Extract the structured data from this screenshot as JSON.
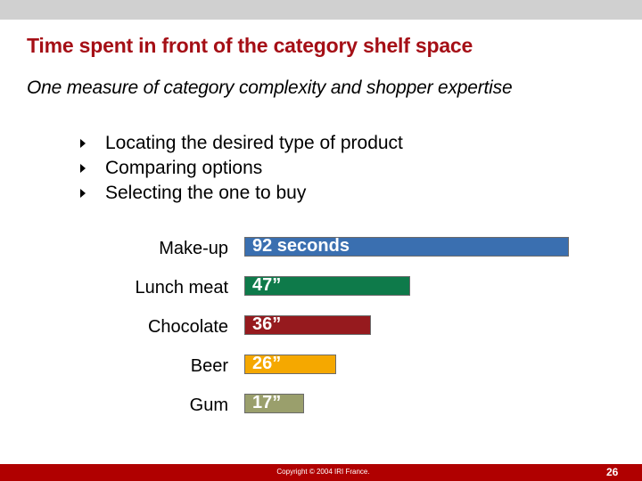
{
  "slide": {
    "title": "Time spent in front of the category shelf space",
    "subtitle": "One measure of category complexity and shopper expertise",
    "bullets": [
      "Locating the desired type of product",
      "Comparing options",
      "Selecting the one to buy"
    ],
    "footer": {
      "copyright": "Copyright © 2004 IRI France.",
      "page_number": "26"
    },
    "colors": {
      "title": "#a50f16",
      "footer_band": "#b00000",
      "top_band": "#d0d0d0"
    }
  },
  "chart_data": {
    "type": "bar",
    "orientation": "horizontal",
    "title": "Time spent in front of the category shelf space",
    "xlabel": "",
    "ylabel": "",
    "unit": "seconds",
    "categories": [
      "Make-up",
      "Lunch meat",
      "Chocolate",
      "Beer",
      "Gum"
    ],
    "values": [
      92,
      47,
      36,
      26,
      17
    ],
    "data_labels": [
      "92 seconds",
      "47”",
      "36”",
      "26”",
      "17”"
    ],
    "bar_colors": [
      "#3a6fb0",
      "#0e7a4a",
      "#961a1e",
      "#f5a800",
      "#9a9f6c"
    ],
    "grid": false,
    "legend": false
  }
}
